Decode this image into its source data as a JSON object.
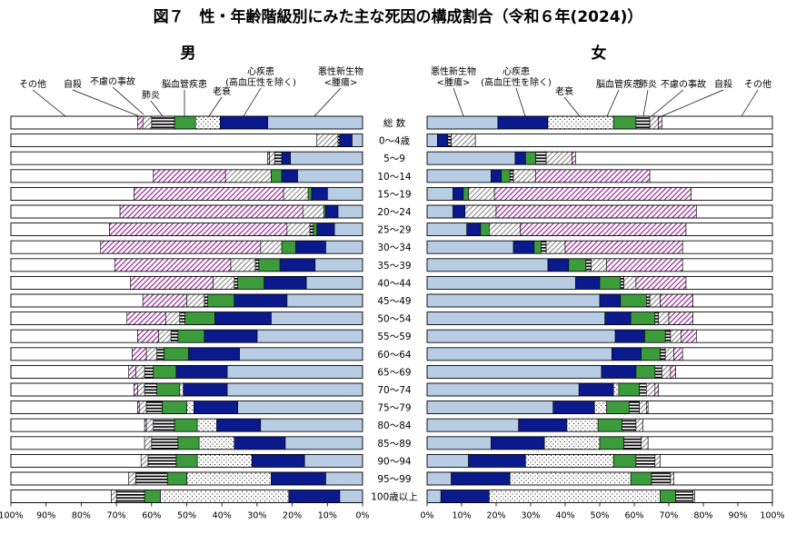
{
  "chart_data": {
    "type": "bar",
    "subtype": "100%-stacked-horizontal",
    "title": "図７　性・年齢階級別にみた主な死因の構成割合（令和６年(2024)）",
    "unit": "%",
    "causes": [
      {
        "key": "neoplasm",
        "label": "悪性新生物\n<腫瘍>",
        "color": "#b8cce4",
        "pattern": "solid"
      },
      {
        "key": "heart",
        "label": "心疾患\n(高血圧性を除く)",
        "color": "#0a1a8c",
        "pattern": "solid"
      },
      {
        "key": "senility",
        "label": "老衰",
        "color": "#ffffff",
        "pattern": "dots"
      },
      {
        "key": "cerebro",
        "label": "脳血管疾患",
        "color": "#3c9c3c",
        "pattern": "solid"
      },
      {
        "key": "pneumonia",
        "label": "肺炎",
        "color": "#ffffff",
        "pattern": "hstripes"
      },
      {
        "key": "accident",
        "label": "不慮の事故",
        "color": "#ffffff",
        "pattern": "diag-gray"
      },
      {
        "key": "suicide",
        "label": "自殺",
        "color": "#ffffff",
        "pattern": "diag-purple"
      },
      {
        "key": "other",
        "label": "その他",
        "color": "#ffffff",
        "pattern": "solid"
      }
    ],
    "male_cause_labels_order": [
      "その他",
      "自殺",
      "不慮の事故",
      "肺炎",
      "脳血管疾患",
      "老衰",
      "心疾患\n(高血圧性を除く)",
      "悪性新生物\n<腫瘍>"
    ],
    "female_cause_labels_order": [
      "悪性新生物\n<腫瘍>",
      "心疾患\n(高血圧性を除く)",
      "老衰",
      "脳血管疾患",
      "肺炎",
      "不慮の事故",
      "自殺",
      "その他"
    ],
    "categories": [
      "総 数",
      "0～4歳",
      "5～9",
      "10～14",
      "15～19",
      "20～24",
      "25～29",
      "30～34",
      "35～39",
      "40～44",
      "45～49",
      "50～54",
      "55～59",
      "60～64",
      "65～69",
      "70～74",
      "75～79",
      "80～84",
      "85～89",
      "90～94",
      "95～99",
      "100歳以上"
    ],
    "series": [
      {
        "name": "男",
        "direction": "right-to-left",
        "xticks": [
          "100%",
          "90%",
          "80%",
          "70%",
          "60%",
          "50%",
          "40%",
          "30%",
          "20%",
          "10%",
          "0%"
        ],
        "values": [
          [
            27.0,
            13.5,
            7.0,
            6.0,
            6.5,
            2.5,
            1.5,
            36.0
          ],
          [
            3.0,
            3.5,
            0,
            0,
            0.5,
            6.0,
            0,
            87.0
          ],
          [
            20.5,
            2.5,
            0,
            0,
            2.0,
            1.5,
            0.5,
            73.0
          ],
          [
            18.5,
            4.5,
            0,
            3.0,
            0,
            13.0,
            20.5,
            40.5
          ],
          [
            10.0,
            4.5,
            0,
            1.0,
            0,
            7.0,
            42.5,
            35.0
          ],
          [
            7.0,
            3.5,
            0,
            0.5,
            0,
            6.0,
            52.0,
            31.0
          ],
          [
            8.0,
            5.0,
            0,
            1.0,
            1.0,
            6.5,
            50.5,
            28.0
          ],
          [
            10.5,
            8.5,
            0,
            4.0,
            0,
            6.0,
            45.5,
            25.5
          ],
          [
            13.5,
            10.0,
            0,
            6.0,
            1.0,
            7.0,
            33.0,
            29.5
          ],
          [
            16.0,
            12.0,
            0,
            7.5,
            1.0,
            6.0,
            23.5,
            34.0
          ],
          [
            21.5,
            15.0,
            0,
            7.5,
            1.0,
            5.0,
            12.5,
            37.5
          ],
          [
            26.0,
            16.0,
            0,
            8.5,
            1.5,
            4.0,
            11.0,
            33.0
          ],
          [
            30.0,
            15.0,
            0,
            7.5,
            2.0,
            3.5,
            6.0,
            36.0
          ],
          [
            35.0,
            14.5,
            0,
            7.0,
            2.0,
            3.0,
            4.0,
            34.5
          ],
          [
            38.5,
            14.5,
            0,
            6.5,
            2.5,
            2.5,
            2.0,
            33.5
          ],
          [
            38.5,
            12.5,
            1.0,
            6.5,
            3.5,
            2.0,
            1.0,
            35.0
          ],
          [
            35.5,
            12.5,
            2.0,
            7.0,
            4.5,
            2.0,
            0.5,
            36.0
          ],
          [
            29.0,
            12.5,
            5.5,
            6.5,
            6.0,
            2.0,
            0.5,
            38.0
          ],
          [
            22.0,
            14.5,
            10.0,
            6.0,
            7.5,
            2.0,
            0,
            38.0
          ],
          [
            16.5,
            15.0,
            15.5,
            6.0,
            8.0,
            2.0,
            0,
            37.0
          ],
          [
            10.5,
            15.5,
            24.0,
            5.5,
            9.0,
            2.0,
            0,
            33.5
          ],
          [
            6.5,
            14.5,
            36.5,
            4.5,
            8.0,
            1.5,
            0,
            28.5
          ]
        ]
      },
      {
        "name": "女",
        "direction": "left-to-right",
        "xticks": [
          "0%",
          "10%",
          "20%",
          "30%",
          "40%",
          "50%",
          "60%",
          "70%",
          "80%",
          "90%",
          "100%"
        ],
        "values": [
          [
            20.5,
            14.5,
            19.0,
            6.5,
            4.0,
            2.5,
            1.0,
            32.0
          ],
          [
            3.0,
            3.0,
            0,
            0,
            1.0,
            7.0,
            0,
            86.0
          ],
          [
            25.5,
            3.0,
            0,
            3.0,
            3.0,
            7.5,
            1.0,
            57.0
          ],
          [
            18.5,
            3.0,
            0,
            2.5,
            1.0,
            6.5,
            33.0,
            35.5
          ],
          [
            7.5,
            3.0,
            0,
            1.5,
            0,
            7.5,
            57.0,
            23.5
          ],
          [
            7.5,
            3.5,
            0,
            0,
            0,
            9.0,
            58.0,
            22.0
          ],
          [
            11.5,
            4.0,
            0,
            2.5,
            0,
            9.0,
            48.0,
            25.0
          ],
          [
            25.0,
            6.0,
            0,
            2.0,
            1.5,
            5.5,
            34.0,
            26.0
          ],
          [
            35.0,
            6.0,
            0,
            5.0,
            1.5,
            4.5,
            22.0,
            26.0
          ],
          [
            43.0,
            7.0,
            0,
            6.0,
            1.0,
            3.5,
            14.5,
            25.0
          ],
          [
            50.0,
            6.0,
            0,
            7.5,
            1.0,
            3.0,
            9.5,
            23.0
          ],
          [
            51.5,
            7.5,
            0,
            7.0,
            1.0,
            3.0,
            7.0,
            23.0
          ],
          [
            54.5,
            8.5,
            0,
            6.0,
            1.5,
            3.0,
            4.5,
            22.0
          ],
          [
            53.5,
            8.5,
            0,
            5.5,
            1.5,
            2.5,
            2.5,
            26.0
          ],
          [
            50.5,
            10.0,
            0,
            5.5,
            2.0,
            2.5,
            1.5,
            28.0
          ],
          [
            44.0,
            10.0,
            1.5,
            6.0,
            2.0,
            2.5,
            1.0,
            33.0
          ],
          [
            36.5,
            12.0,
            3.5,
            6.5,
            3.0,
            2.0,
            0.5,
            36.0
          ],
          [
            26.5,
            14.0,
            9.0,
            7.0,
            4.0,
            2.0,
            0,
            37.5
          ],
          [
            18.5,
            15.5,
            16.0,
            7.0,
            5.0,
            2.0,
            0,
            36.0
          ],
          [
            12.0,
            16.5,
            25.5,
            6.5,
            5.5,
            1.5,
            0,
            32.5
          ],
          [
            7.0,
            17.0,
            35.0,
            6.0,
            5.5,
            1.0,
            0,
            28.5
          ],
          [
            4.0,
            14.0,
            49.5,
            4.5,
            5.0,
            0.5,
            0,
            22.5
          ]
        ]
      }
    ],
    "xlim": [
      0,
      100
    ],
    "grid": false,
    "legend": "direct labels above bars"
  }
}
